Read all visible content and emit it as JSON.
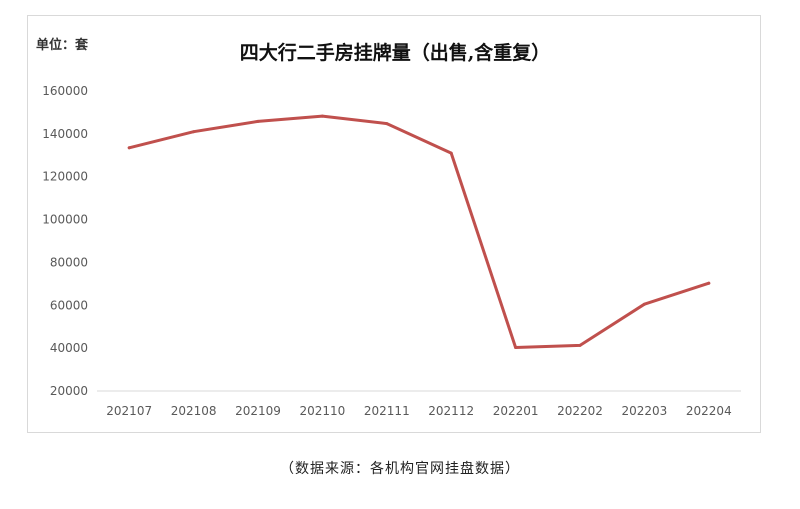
{
  "chart_data": {
    "type": "line",
    "title": "四大行二手房挂牌量（出售,含重复）",
    "unit_label": "单位：套",
    "categories": [
      "202107",
      "202108",
      "202109",
      "202110",
      "202111",
      "202112",
      "202201",
      "202202",
      "202203",
      "202204"
    ],
    "series": [
      {
        "values": [
          133500,
          141000,
          145800,
          148300,
          144800,
          131000,
          40300,
          41300,
          60500,
          70300
        ]
      }
    ],
    "ylim": [
      20000,
      160000
    ],
    "yticks": [
      20000,
      40000,
      60000,
      80000,
      100000,
      120000,
      140000,
      160000
    ],
    "ytick_labels": [
      "20000",
      "40000",
      "60000",
      "80000",
      "100000",
      "120000",
      "140000",
      "160000"
    ],
    "grid": false,
    "legend": "none",
    "line_color": "#c0504d"
  },
  "source_note": "（数据来源：各机构官网挂盘数据）"
}
